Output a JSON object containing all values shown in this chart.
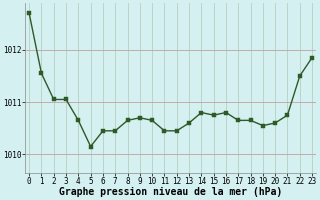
{
  "x": [
    0,
    1,
    2,
    3,
    4,
    5,
    6,
    7,
    8,
    9,
    10,
    11,
    12,
    13,
    14,
    15,
    16,
    17,
    18,
    19,
    20,
    21,
    22,
    23
  ],
  "y": [
    1012.7,
    1011.55,
    1011.05,
    1011.05,
    1010.65,
    1010.15,
    1010.45,
    1010.45,
    1010.65,
    1010.7,
    1010.65,
    1010.45,
    1010.45,
    1010.6,
    1010.8,
    1010.75,
    1010.8,
    1010.65,
    1010.65,
    1010.55,
    1010.6,
    1010.75,
    1011.5,
    1011.85
  ],
  "line_color": "#2d5a27",
  "marker_color": "#2d5a27",
  "bg_color": "#d4f0f0",
  "grid_color_y": "#b0c8b0",
  "grid_color_x": "#c0d0c0",
  "ylabel_ticks": [
    1010,
    1011,
    1012
  ],
  "ylim": [
    1009.65,
    1012.9
  ],
  "xlim": [
    -0.3,
    23.3
  ],
  "xlabel": "Graphe pression niveau de la mer (hPa)",
  "xlabel_fontsize": 7.0,
  "tick_fontsize": 5.5,
  "marker_size": 2.2,
  "line_width": 1.0,
  "figwidth": 3.2,
  "figheight": 2.0,
  "dpi": 100
}
